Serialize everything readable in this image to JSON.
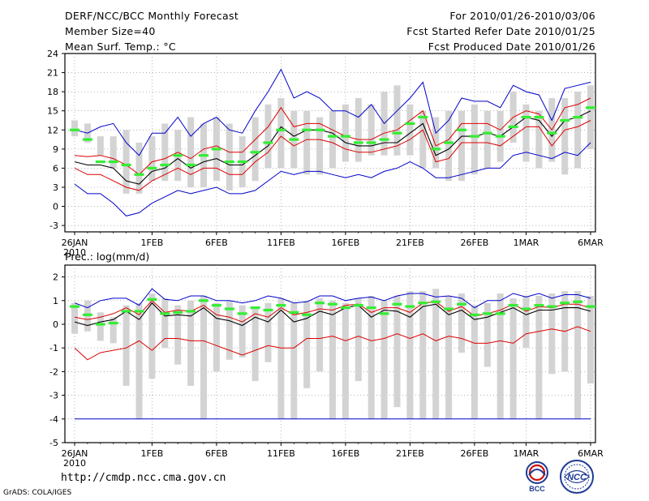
{
  "header": {
    "left": [
      "DERF/NCC/BCC Monthly Forecast",
      "Member Size=40",
      "Mean Surf. Temp.: °C"
    ],
    "right": [
      "For 2010/01/26-2010/03/06",
      "Fcst Started Refer Date 2010/01/25",
      "Fcst Produced Date 2010/01/26"
    ]
  },
  "footer": {
    "url": "http://cmdp.ncc.cma.gov.cn",
    "grads": "GrADS: COLA/IGES"
  },
  "logos": {
    "bcc": "BCC",
    "ncc": "NCC"
  },
  "colors": {
    "box": "#d3d3d3",
    "mean": "#33ee33",
    "median": "#000000",
    "spread": "#dd0000",
    "extreme": "#0000cc",
    "grid": "#888888"
  },
  "chart_data": [
    {
      "type": "box-line",
      "title": "Mean Surf. Temp.: °C",
      "xlabel": "",
      "ylabel": "",
      "x_tick_labels": [
        "26JAN",
        "1FEB",
        "6FEB",
        "11FEB",
        "16FEB",
        "21FEB",
        "26FEB",
        "1MAR",
        "6MAR"
      ],
      "x_tick_days": [
        0,
        6,
        11,
        16,
        21,
        26,
        31,
        35,
        40
      ],
      "year_label": "2010",
      "ylim": [
        -4,
        24
      ],
      "yticks": [
        -3,
        0,
        3,
        6,
        9,
        12,
        15,
        18,
        21,
        24
      ],
      "grid": true,
      "days": [
        0,
        1,
        2,
        3,
        4,
        5,
        6,
        7,
        8,
        9,
        10,
        11,
        12,
        13,
        14,
        15,
        16,
        17,
        18,
        19,
        20,
        21,
        22,
        23,
        24,
        25,
        26,
        27,
        28,
        29,
        30,
        31,
        32,
        33,
        34,
        35,
        36,
        37,
        38,
        39,
        40
      ],
      "box_low": [
        11,
        10,
        8,
        6,
        2,
        2,
        4,
        4,
        4,
        3,
        3,
        4,
        2.5,
        3,
        4,
        6,
        6,
        6,
        5,
        5,
        6,
        7,
        7,
        8,
        8,
        8,
        8,
        6,
        6,
        4,
        4,
        5,
        6,
        7,
        10,
        7,
        6,
        7,
        5,
        6,
        9
      ],
      "box_high": [
        13.5,
        13,
        11,
        11,
        12,
        10,
        11,
        13,
        12,
        14,
        13,
        14,
        13,
        11,
        14,
        16,
        17,
        15,
        15,
        14,
        15,
        16,
        17,
        16,
        18,
        19,
        16,
        15,
        14,
        15,
        15,
        16,
        15,
        15,
        18,
        16,
        15,
        17,
        17,
        18,
        19
      ],
      "mean": [
        12,
        10.5,
        7,
        7,
        6.5,
        5,
        6,
        6.5,
        8,
        6.5,
        8,
        9,
        7,
        7,
        8.5,
        10,
        12,
        10.5,
        12,
        12,
        11,
        11,
        10,
        10,
        10.5,
        11.5,
        13,
        14,
        9,
        10,
        12,
        11,
        11.5,
        11,
        12.5,
        14,
        14,
        11.5,
        13.5,
        14,
        15.5
      ],
      "median": [
        7,
        6.5,
        6.5,
        6,
        4,
        3.5,
        5.5,
        6,
        7.5,
        6,
        7,
        7.5,
        6.5,
        6.5,
        8,
        9.5,
        12.5,
        11,
        12,
        12,
        11.5,
        10,
        9.5,
        9.5,
        10,
        10,
        11.5,
        13,
        8,
        9,
        11,
        11,
        11.5,
        11,
        12.5,
        14,
        13.5,
        11,
        13.5,
        14,
        15
      ],
      "p75": [
        8,
        7.8,
        8,
        7.5,
        6.5,
        5,
        7,
        7.5,
        8.5,
        7.5,
        9,
        9.5,
        8.5,
        8.5,
        10.5,
        12.5,
        15.5,
        12.5,
        13,
        13,
        12,
        11,
        10.5,
        10.5,
        11.5,
        12,
        13.5,
        15,
        9.5,
        10.5,
        13,
        13,
        13,
        12,
        14,
        15,
        14.5,
        12,
        15.5,
        16,
        17
      ],
      "p25": [
        6,
        5,
        5,
        4,
        3,
        2.5,
        4,
        5,
        6,
        5,
        6,
        6,
        5,
        5,
        7,
        8.5,
        11,
        9.5,
        10.5,
        10.5,
        10,
        9,
        8.5,
        8.5,
        9,
        9.5,
        10.5,
        12,
        7,
        7.5,
        10,
        10,
        10,
        9.5,
        11,
        12.5,
        12.5,
        9.5,
        12,
        12.5,
        13.5
      ],
      "max": [
        12,
        11.5,
        12.5,
        13,
        10,
        8,
        11.5,
        11.5,
        14,
        11,
        13,
        14,
        12,
        11.5,
        15,
        18,
        21.5,
        17,
        18,
        17,
        15,
        15,
        14,
        16,
        13,
        15,
        17,
        19.5,
        11.5,
        13.5,
        17,
        16.5,
        16.5,
        15.5,
        19,
        18,
        17.5,
        13.5,
        18.5,
        19,
        19.5
      ],
      "min": [
        3.5,
        2,
        2,
        0.5,
        -1.5,
        -1,
        0.5,
        1.5,
        2.5,
        2,
        2.5,
        3,
        2,
        2,
        2.5,
        4,
        5.5,
        5,
        5.5,
        5.5,
        5,
        4.5,
        5,
        4.5,
        5.5,
        6,
        7,
        6,
        4.5,
        4.5,
        5,
        5.5,
        6,
        6,
        8,
        8.5,
        8,
        7.5,
        8.5,
        8,
        10
      ]
    },
    {
      "type": "box-line",
      "title": "Prec.: log(mm/d)",
      "xlabel": "",
      "ylabel": "",
      "x_tick_labels": [
        "26JAN",
        "1FEB",
        "6FEB",
        "11FEB",
        "16FEB",
        "21FEB",
        "26FEB",
        "1MAR",
        "6MAR"
      ],
      "x_tick_days": [
        0,
        6,
        11,
        16,
        21,
        26,
        31,
        35,
        40
      ],
      "year_label": "2010",
      "ylim": [
        -5,
        2.5
      ],
      "yticks": [
        -5,
        -4,
        -3,
        -2,
        -1,
        0,
        1,
        2
      ],
      "grid": true,
      "days": [
        0,
        1,
        2,
        3,
        4,
        5,
        6,
        7,
        8,
        9,
        10,
        11,
        12,
        13,
        14,
        15,
        16,
        17,
        18,
        19,
        20,
        21,
        22,
        23,
        24,
        25,
        26,
        27,
        28,
        29,
        30,
        31,
        32,
        33,
        34,
        35,
        36,
        37,
        38,
        39,
        40
      ],
      "box_low": [
        -0.4,
        -0.3,
        -0.7,
        -0.8,
        -2.6,
        -4,
        -2.3,
        -1,
        -1.7,
        -2.6,
        -4,
        -2,
        -1.5,
        -1.4,
        -2.4,
        -1.6,
        -4,
        -4,
        -2.7,
        -2,
        -4,
        -4,
        -2.4,
        -4,
        -4,
        -3.5,
        -4,
        -4,
        -4,
        -4,
        -1.2,
        -4,
        -1.8,
        -4,
        -4,
        -1,
        -4,
        -2.1,
        -2,
        -4,
        -2.5
      ],
      "box_high": [
        0.9,
        1,
        0.5,
        0.3,
        0.8,
        0.9,
        1.3,
        1.1,
        0.8,
        1,
        1.2,
        0.9,
        1,
        0.8,
        0.7,
        0.9,
        1.1,
        0.9,
        1,
        1.1,
        1,
        0.9,
        1.1,
        1.2,
        1,
        1.2,
        1.4,
        1.4,
        1.5,
        1.2,
        1.3,
        0.8,
        0.9,
        1.3,
        1.1,
        1.2,
        1.2,
        1.3,
        1.4,
        1.4,
        1.2
      ],
      "mean": [
        0.75,
        0.4,
        0,
        0.05,
        0.55,
        0.55,
        1.05,
        0.45,
        0.5,
        0.55,
        1,
        0.8,
        0.65,
        0.45,
        0.7,
        0.6,
        0.8,
        0.5,
        0.4,
        0.9,
        0.85,
        0.7,
        0.8,
        0.7,
        0.45,
        0.85,
        0.75,
        0.9,
        0.95,
        0.65,
        0.85,
        0.4,
        0.45,
        0.45,
        0.8,
        0.65,
        0.8,
        0.75,
        0.9,
        0.95,
        0.75
      ],
      "median": [
        0.1,
        -0.05,
        0.1,
        0.2,
        0.55,
        0.2,
        0.9,
        0.35,
        0.4,
        0.35,
        0.7,
        0.25,
        0.15,
        -0.05,
        0.3,
        0.1,
        0.6,
        0.1,
        0.25,
        0.55,
        0.4,
        0.7,
        0.8,
        0.3,
        0.6,
        0.55,
        0.3,
        0.75,
        0.85,
        0.4,
        0.6,
        0.2,
        0.3,
        0.5,
        0.7,
        0.4,
        0.6,
        0.6,
        0.7,
        0.7,
        0.55
      ],
      "p75": [
        0.3,
        0.2,
        0.3,
        0.45,
        0.7,
        0.4,
        1,
        0.5,
        0.6,
        0.55,
        0.8,
        0.4,
        0.3,
        0.1,
        0.45,
        0.3,
        0.7,
        0.4,
        0.5,
        0.65,
        0.6,
        0.8,
        0.85,
        0.5,
        0.7,
        0.7,
        0.5,
        0.9,
        0.95,
        0.55,
        0.75,
        0.35,
        0.45,
        0.6,
        0.85,
        0.55,
        0.75,
        0.7,
        0.85,
        0.85,
        0.7
      ],
      "p25": [
        -1,
        -1.5,
        -1.2,
        -1.1,
        -1,
        -0.7,
        -1.1,
        -0.6,
        -0.6,
        -0.7,
        -0.7,
        -0.9,
        -1.1,
        -1.3,
        -1.1,
        -0.9,
        -1,
        -1,
        -0.6,
        -0.6,
        -0.5,
        -0.7,
        -0.5,
        -0.7,
        -0.6,
        -0.4,
        -0.6,
        -0.4,
        -0.7,
        -0.5,
        -0.6,
        -0.8,
        -0.8,
        -0.7,
        -0.8,
        -0.4,
        -0.3,
        -0.2,
        -0.3,
        -0.1,
        -0.3
      ],
      "max": [
        0.9,
        0.7,
        1,
        1.1,
        1.1,
        0.8,
        1.5,
        1.05,
        1,
        1.2,
        1.2,
        1,
        1,
        0.9,
        1,
        1.2,
        1.1,
        0.9,
        0.95,
        1.2,
        1.2,
        1,
        1.1,
        1.15,
        1,
        1.2,
        1.3,
        1.3,
        1.15,
        1.2,
        1.1,
        0.7,
        1,
        1,
        1.3,
        1.15,
        1.3,
        1.1,
        1.25,
        1.25,
        1.1
      ],
      "min": [
        -4,
        -4,
        -4,
        -4,
        -4,
        -4,
        -4,
        -4,
        -4,
        -4,
        -4,
        -4,
        -4,
        -4,
        -4,
        -4,
        -4,
        -4,
        -4,
        -4,
        -4,
        -4,
        -4,
        -4,
        -4,
        -4,
        -4,
        -4,
        -4,
        -4,
        -4,
        -4,
        -4,
        -4,
        -4,
        -4,
        -4,
        -4,
        -4,
        -4,
        -4
      ]
    }
  ]
}
